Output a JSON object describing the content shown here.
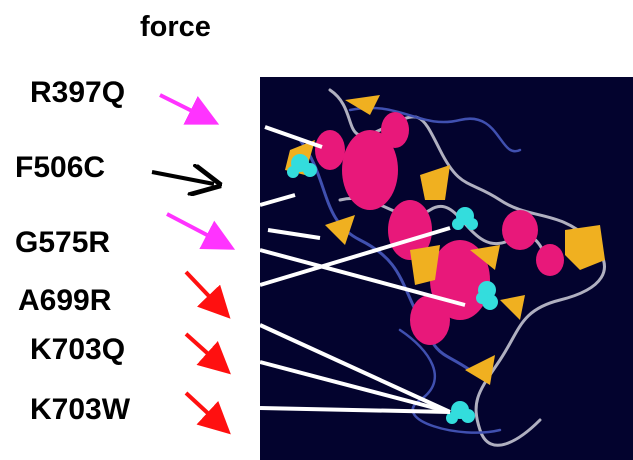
{
  "title": "force",
  "mutations": [
    "R397Q",
    "F506C",
    "G575R",
    "A699R",
    "K703Q",
    "K703W"
  ]
}
